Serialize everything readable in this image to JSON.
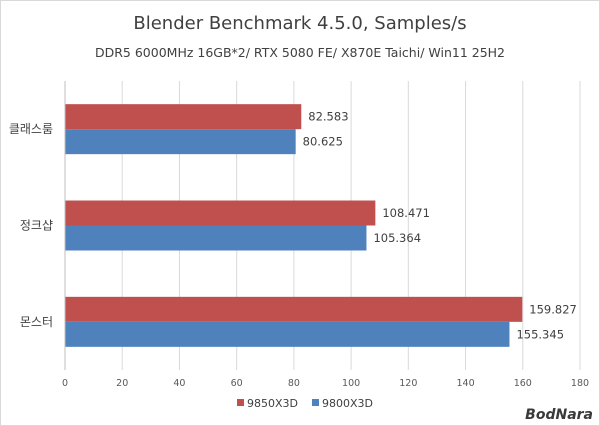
{
  "chart_data": {
    "type": "bar",
    "orientation": "horizontal",
    "title": "Blender Benchmark 4.5.0, Samples/s",
    "subtitle": "DDR5 6000MHz 16GB*2/ RTX 5080 FE/ X870E Taichi/ Win11 25H2",
    "categories": [
      "클래스룸",
      "정크샵",
      "몬스터"
    ],
    "series": [
      {
        "name": "9850X3D",
        "color": "#c0504d",
        "values": [
          82.583,
          108.471,
          159.827
        ]
      },
      {
        "name": "9800X3D",
        "color": "#4f81bd",
        "values": [
          80.625,
          105.364,
          155.345
        ]
      }
    ],
    "data_labels": [
      [
        "82.583",
        "108.471",
        "159.827"
      ],
      [
        "80.625",
        "105.364",
        "155.345"
      ]
    ],
    "xlim": [
      0,
      180
    ],
    "x_ticks": [
      "0",
      "20",
      "40",
      "60",
      "80",
      "100",
      "120",
      "140",
      "160",
      "180"
    ],
    "xlabel": "",
    "ylabel": "",
    "grid": "vertical",
    "legend": "bottom"
  },
  "watermark": {
    "text": "BodNara"
  }
}
